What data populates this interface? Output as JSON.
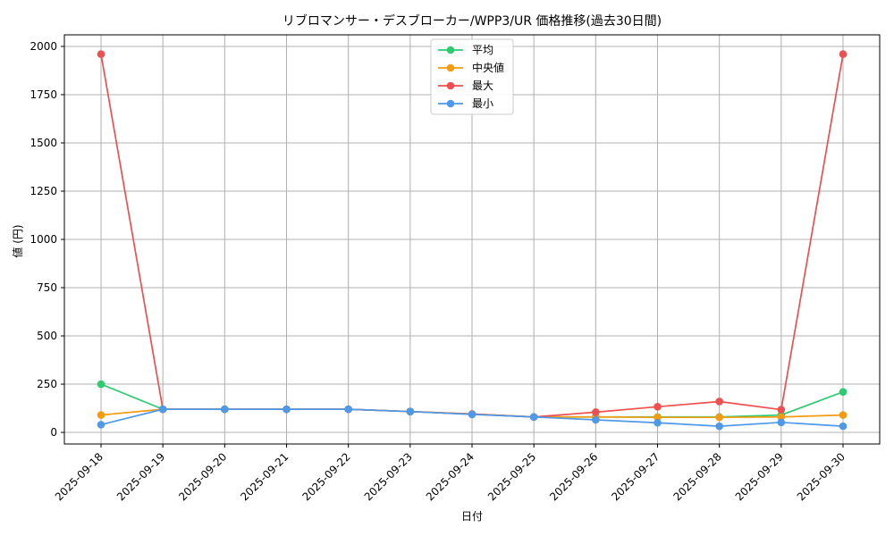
{
  "chart_data": {
    "type": "line",
    "title": "リブロマンサー・デスブローカー/WPP3/UR 価格推移(過去30日間)",
    "xlabel": "日付",
    "ylabel": "値 (円)",
    "ylim": [
      -60,
      2060
    ],
    "yticks": [
      0,
      250,
      500,
      750,
      1000,
      1250,
      1500,
      1750,
      2000
    ],
    "grid": true,
    "legend_position": "top-center",
    "x": [
      "2025-09-18",
      "2025-09-19",
      "2025-09-20",
      "2025-09-21",
      "2025-09-22",
      "2025-09-23",
      "2025-09-24",
      "2025-09-25",
      "2025-09-26",
      "2025-09-27",
      "2025-09-28",
      "2025-09-29",
      "2025-09-30"
    ],
    "series": [
      {
        "name": "平均",
        "color": "#2ecc71",
        "values": [
          250,
          120,
          120,
          120,
          120,
          108,
          95,
          80,
          80,
          80,
          80,
          90,
          210
        ]
      },
      {
        "name": "中央値",
        "color": "#f39c12",
        "values": [
          90,
          120,
          120,
          120,
          120,
          108,
          95,
          80,
          80,
          78,
          78,
          80,
          90
        ]
      },
      {
        "name": "最大",
        "color": "#ef4f4f",
        "values": [
          1960,
          120,
          120,
          120,
          120,
          108,
          95,
          80,
          105,
          133,
          160,
          118,
          1960
        ]
      },
      {
        "name": "最小",
        "color": "#4f9ae8",
        "values": [
          40,
          120,
          120,
          120,
          120,
          108,
          93,
          80,
          65,
          50,
          32,
          52,
          32
        ]
      }
    ]
  }
}
